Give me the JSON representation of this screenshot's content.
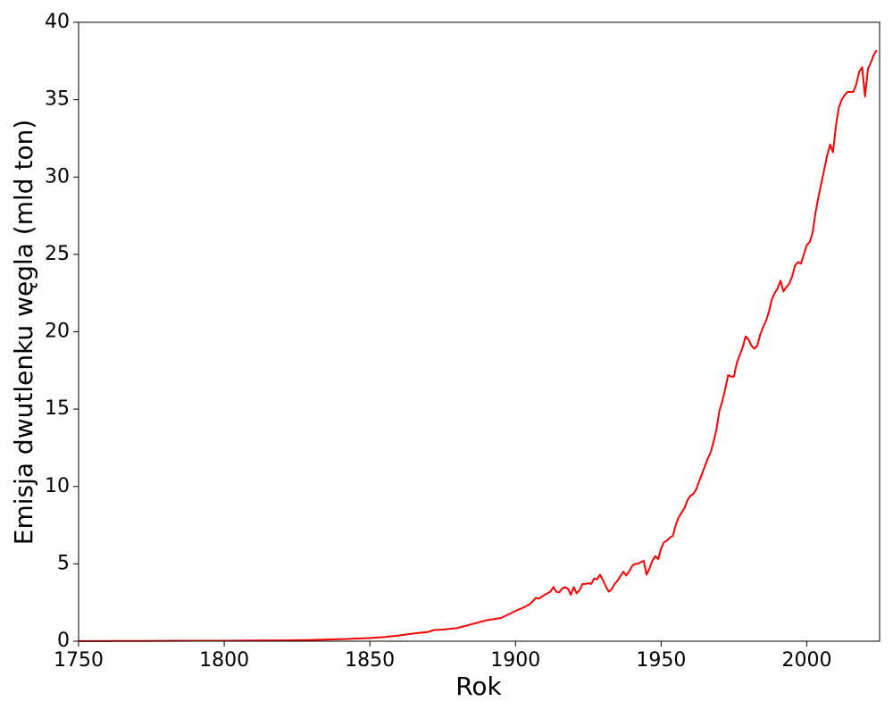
{
  "chart_data": {
    "type": "line",
    "xlabel": "Rok",
    "ylabel": "Emisja dwutlenku węgla (mld ton)",
    "x": [
      1750,
      1760,
      1770,
      1780,
      1790,
      1800,
      1810,
      1820,
      1830,
      1840,
      1850,
      1855,
      1860,
      1865,
      1870,
      1872,
      1875,
      1880,
      1885,
      1890,
      1895,
      1900,
      1903,
      1905,
      1907,
      1908,
      1910,
      1912,
      1913,
      1914,
      1915,
      1916,
      1917,
      1918,
      1919,
      1920,
      1921,
      1922,
      1923,
      1924,
      1925,
      1926,
      1927,
      1928,
      1929,
      1930,
      1931,
      1932,
      1933,
      1934,
      1935,
      1936,
      1937,
      1938,
      1939,
      1940,
      1941,
      1942,
      1943,
      1944,
      1945,
      1946,
      1947,
      1948,
      1949,
      1950,
      1951,
      1952,
      1953,
      1954,
      1955,
      1956,
      1957,
      1958,
      1959,
      1960,
      1961,
      1962,
      1963,
      1964,
      1965,
      1966,
      1967,
      1968,
      1969,
      1970,
      1971,
      1972,
      1973,
      1974,
      1975,
      1976,
      1977,
      1978,
      1979,
      1980,
      1981,
      1982,
      1983,
      1984,
      1985,
      1986,
      1987,
      1988,
      1989,
      1990,
      1991,
      1992,
      1993,
      1994,
      1995,
      1996,
      1997,
      1998,
      1999,
      2000,
      2001,
      2002,
      2003,
      2004,
      2005,
      2006,
      2007,
      2008,
      2009,
      2010,
      2011,
      2012,
      2013,
      2014,
      2015,
      2016,
      2017,
      2018,
      2019,
      2020,
      2021,
      2022,
      2023,
      2024
    ],
    "series": [
      {
        "color": "#ff0000",
        "values": [
          0.009,
          0.01,
          0.015,
          0.02,
          0.03,
          0.03,
          0.04,
          0.05,
          0.08,
          0.13,
          0.2,
          0.27,
          0.37,
          0.5,
          0.6,
          0.72,
          0.75,
          0.85,
          1.1,
          1.35,
          1.5,
          1.95,
          2.2,
          2.4,
          2.8,
          2.75,
          3.0,
          3.2,
          3.5,
          3.2,
          3.15,
          3.4,
          3.5,
          3.4,
          3.0,
          3.5,
          3.1,
          3.3,
          3.7,
          3.7,
          3.75,
          3.7,
          4.05,
          4.0,
          4.3,
          3.95,
          3.55,
          3.2,
          3.35,
          3.7,
          3.9,
          4.2,
          4.5,
          4.25,
          4.5,
          4.85,
          5.0,
          5.0,
          5.1,
          5.2,
          4.3,
          4.7,
          5.2,
          5.5,
          5.3,
          6.0,
          6.4,
          6.5,
          6.7,
          6.8,
          7.5,
          8.0,
          8.3,
          8.6,
          9.1,
          9.4,
          9.5,
          9.8,
          10.3,
          10.8,
          11.3,
          11.8,
          12.2,
          12.9,
          13.7,
          14.9,
          15.5,
          16.3,
          17.2,
          17.1,
          17.1,
          18.0,
          18.5,
          19.0,
          19.7,
          19.5,
          19.1,
          18.9,
          19.1,
          19.8,
          20.3,
          20.7,
          21.3,
          22.1,
          22.5,
          22.8,
          23.3,
          22.6,
          22.9,
          23.1,
          23.6,
          24.3,
          24.5,
          24.4,
          25.0,
          25.6,
          25.8,
          26.4,
          27.7,
          28.7,
          29.6,
          30.5,
          31.4,
          32.1,
          31.6,
          33.3,
          34.5,
          35.0,
          35.3,
          35.5,
          35.5,
          35.5,
          36.0,
          36.8,
          37.1,
          35.2,
          37.0,
          37.4,
          37.9,
          38.2
        ]
      }
    ],
    "xlim": [
      1750,
      2025
    ],
    "xticks": [
      1750,
      1800,
      1850,
      1900,
      1950,
      2000
    ],
    "ylim": [
      0,
      40
    ],
    "yticks": [
      0,
      5,
      10,
      15,
      20,
      25,
      30,
      35,
      40
    ]
  }
}
